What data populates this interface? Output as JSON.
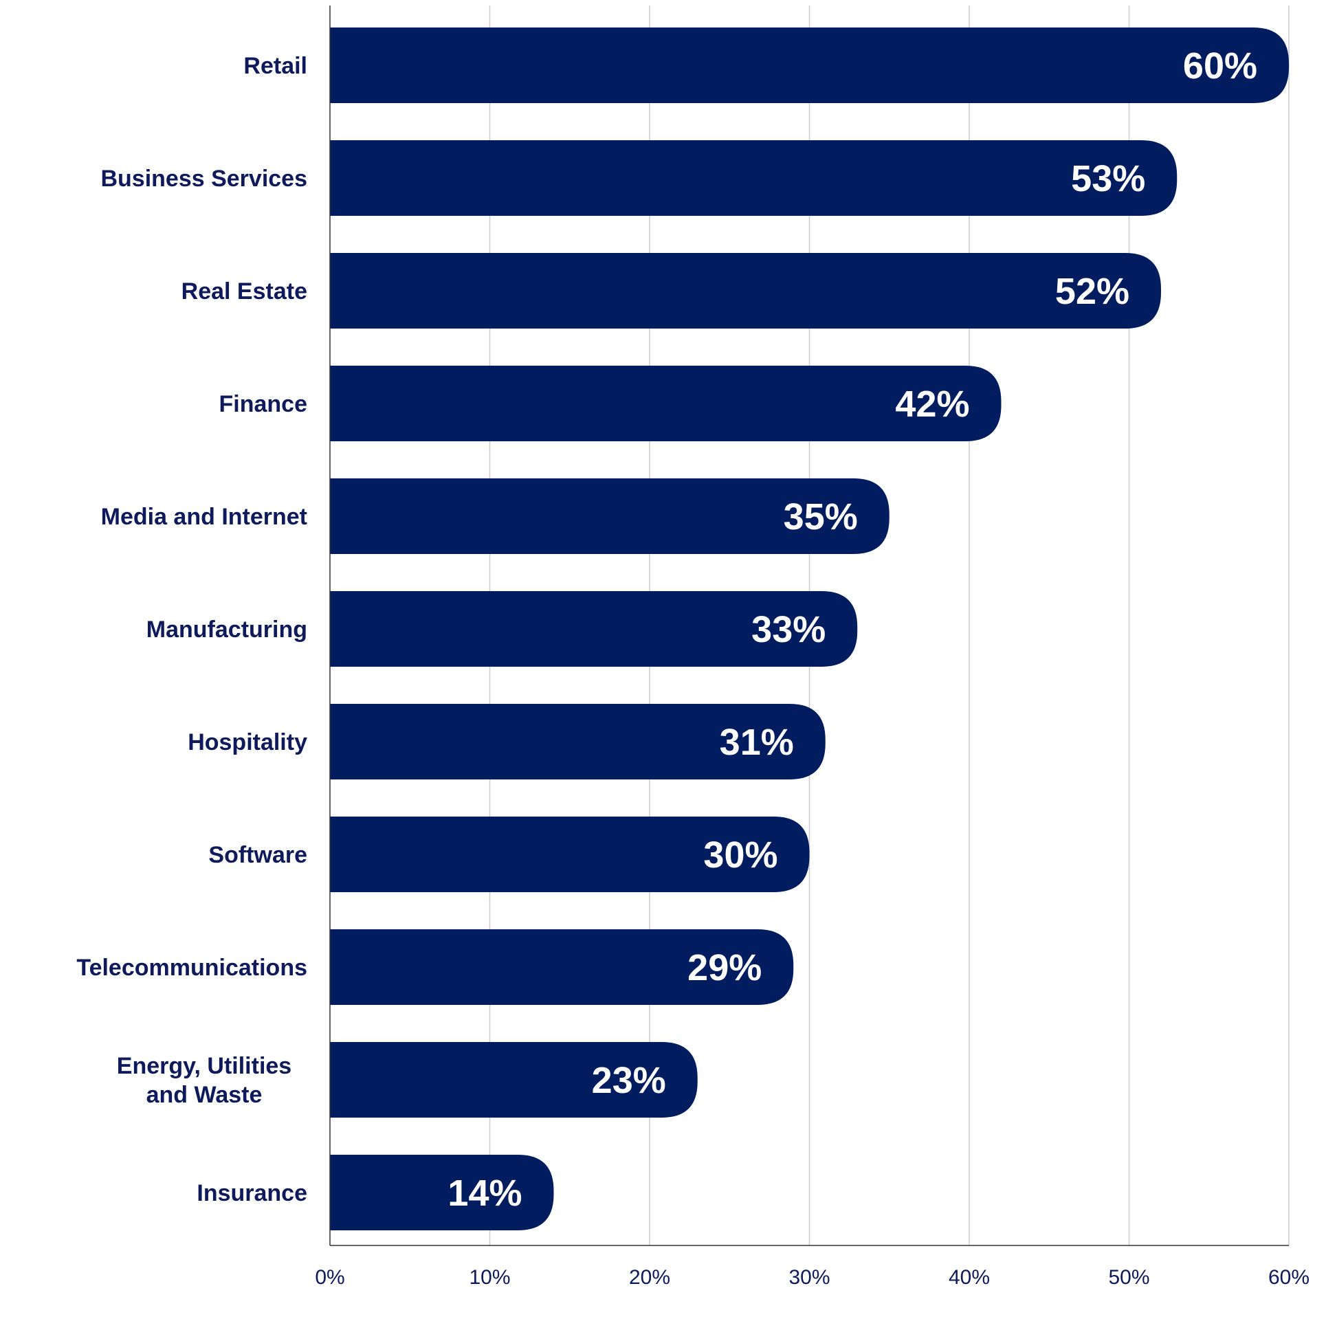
{
  "chart_data": {
    "type": "bar",
    "orientation": "horizontal",
    "categories": [
      [
        "Retail"
      ],
      [
        "Business Services"
      ],
      [
        "Real Estate"
      ],
      [
        "Finance"
      ],
      [
        "Media and Internet"
      ],
      [
        "Manufacturing"
      ],
      [
        "Hospitality"
      ],
      [
        "Software"
      ],
      [
        "Telecommunications"
      ],
      [
        "Energy, Utilities",
        "and Waste"
      ],
      [
        "Insurance"
      ]
    ],
    "values": [
      60,
      53,
      52,
      42,
      35,
      33,
      31,
      30,
      29,
      23,
      14
    ],
    "value_labels": [
      "60%",
      "53%",
      "52%",
      "42%",
      "35%",
      "33%",
      "31%",
      "30%",
      "29%",
      "23%",
      "14%"
    ],
    "x_ticks": [
      0,
      10,
      20,
      30,
      40,
      50,
      60
    ],
    "x_tick_labels": [
      "0%",
      "10%",
      "20%",
      "30%",
      "40%",
      "50%",
      "60%"
    ],
    "xlim": [
      0,
      60
    ],
    "grid": "vertical",
    "legend": "none",
    "colors": {
      "bar": "#021c60",
      "text": "#0e1a5c",
      "value_text": "#ffffff",
      "grid": "#cccccc",
      "axis": "#333333"
    }
  }
}
